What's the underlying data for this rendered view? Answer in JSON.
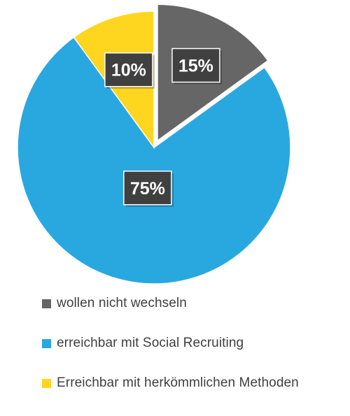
{
  "chart_data": {
    "type": "pie",
    "title": "",
    "unit": "%",
    "exploded": "wollen nicht wechseln",
    "legend_position": "bottom",
    "slices": [
      {
        "label": "wollen nicht wechseln",
        "value": 15,
        "display": "15%",
        "color": "#666666"
      },
      {
        "label": "erreichbar mit Social Recruiting",
        "value": 75,
        "display": "75%",
        "color": "#29A8E0"
      },
      {
        "label": "Erreichbar mit herkömmlichen Methoden",
        "value": 10,
        "display": "10%",
        "color": "#FFD61F"
      }
    ]
  },
  "style": {
    "data_label_background": "#404040",
    "data_label_text": "#ffffff"
  }
}
